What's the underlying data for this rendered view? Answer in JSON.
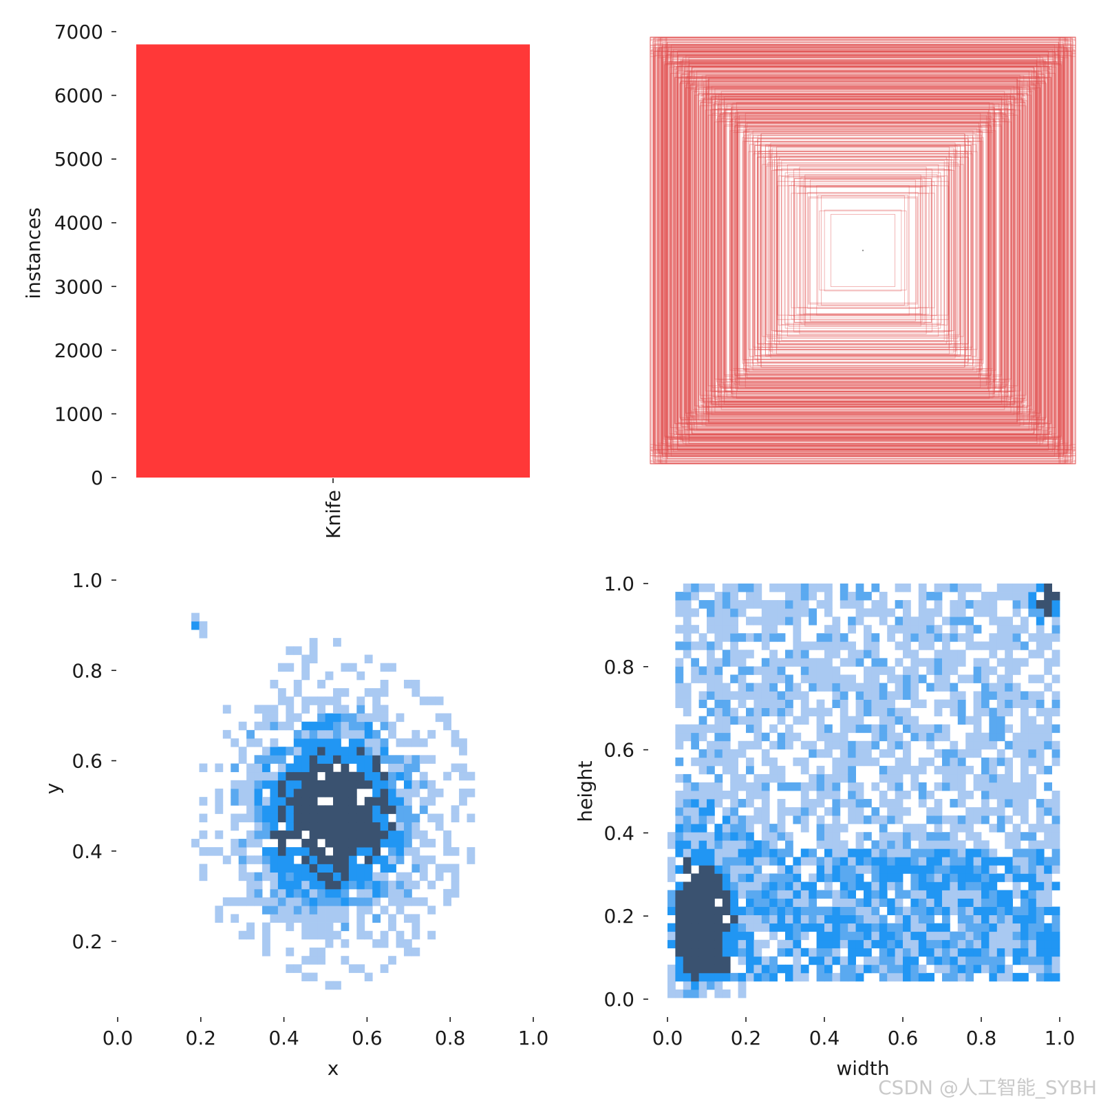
{
  "watermark": "CSDN @人工智能_SYBH",
  "colors": {
    "bar": "#ff3838",
    "box": "#e04a4a",
    "hist_light": "#a9c9f2",
    "hist_mid": "#5aa9f0",
    "hist_strong": "#2196f3",
    "hist_dark": "#3a5270"
  },
  "chart_data": [
    {
      "id": "instances",
      "type": "bar",
      "categories": [
        "Knife"
      ],
      "values": [
        6800
      ],
      "xlabel": "",
      "ylabel": "instances",
      "ylim": [
        0,
        7000
      ],
      "yticks": [
        "0",
        "1000",
        "2000",
        "3000",
        "4000",
        "5000",
        "6000",
        "7000"
      ],
      "grid": false
    },
    {
      "id": "boxes",
      "type": "scatter",
      "description_visible": "overlaid bounding box outlines centered on one point",
      "xlabel": "",
      "ylabel": "",
      "grid": false
    },
    {
      "id": "xy",
      "type": "heatmap",
      "xlabel": "x",
      "ylabel": "y",
      "xlim": [
        0,
        1
      ],
      "ylim": [
        0.05,
        1.0
      ],
      "xticks": [
        "0.0",
        "0.2",
        "0.4",
        "0.6",
        "0.8",
        "1.0"
      ],
      "yticks": [
        "0.2",
        "0.4",
        "0.6",
        "0.8",
        "1.0"
      ],
      "bins": 50,
      "hotspots": [
        {
          "x": 0.5,
          "y": 0.47,
          "spread_x": 0.13,
          "spread_y": 0.14,
          "weight": 1.0
        },
        {
          "x": 0.15,
          "y": 0.89,
          "spread_x": 0.01,
          "spread_y": 0.01,
          "weight": 0.6
        }
      ],
      "grid": false
    },
    {
      "id": "wh",
      "type": "heatmap",
      "xlabel": "width",
      "ylabel": "height",
      "xlim": [
        0,
        1
      ],
      "ylim": [
        0,
        1
      ],
      "xticks": [
        "0.0",
        "0.2",
        "0.4",
        "0.6",
        "0.8",
        "1.0"
      ],
      "yticks": [
        "0.0",
        "0.2",
        "0.4",
        "0.6",
        "0.8",
        "1.0"
      ],
      "bins": 50,
      "hotspots": [
        {
          "x": 0.08,
          "y": 0.18,
          "spread_x": 0.05,
          "spread_y": 0.1,
          "weight": 1.0
        },
        {
          "x": 0.98,
          "y": 0.98,
          "spread_x": 0.03,
          "spread_y": 0.05,
          "weight": 0.6
        }
      ],
      "grid": false
    }
  ]
}
